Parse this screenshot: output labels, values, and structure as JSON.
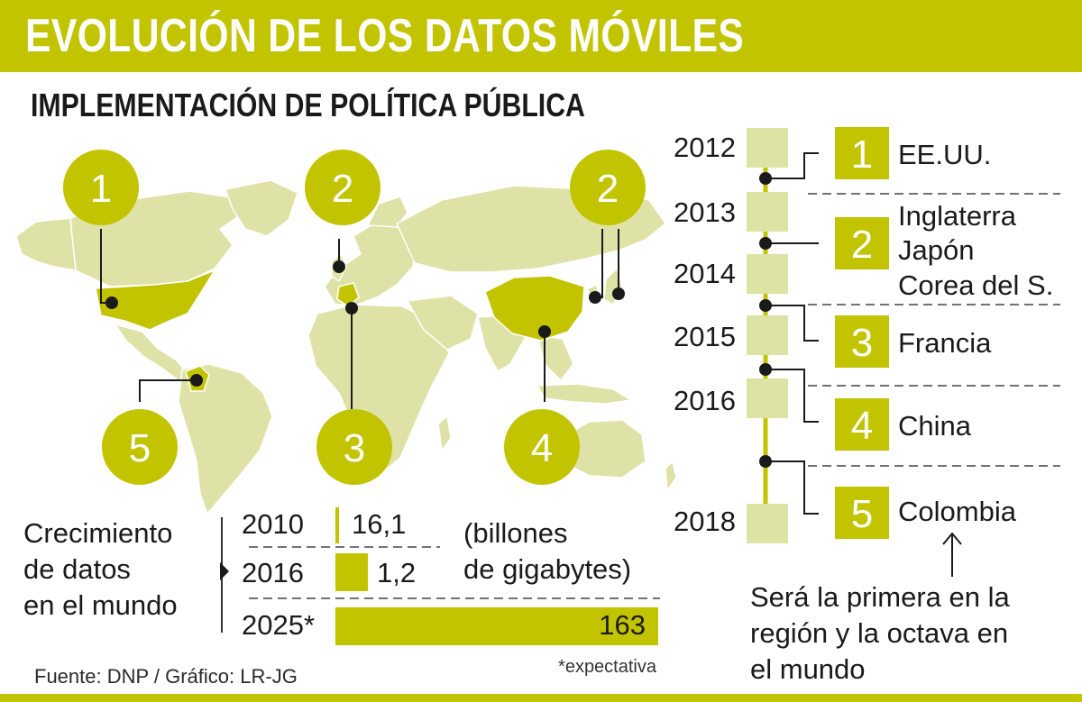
{
  "header": {
    "title": "EVOLUCIÓN DE LOS DATOS MÓVILES"
  },
  "subtitle": "IMPLEMENTACIÓN DE POLÍTICA PÚBLICA",
  "colors": {
    "accent": "#c2c400",
    "map": "#dfe2a6",
    "dark": "#1a1a1a",
    "timeline_box": "#dde3a4"
  },
  "map": {
    "markers": [
      {
        "number": "1",
        "country": "EE.UU."
      },
      {
        "number": "2",
        "country": "Inglaterra"
      },
      {
        "number": "2",
        "country": "Japón / Corea del S."
      },
      {
        "number": "3",
        "country": "Francia"
      },
      {
        "number": "4",
        "country": "China"
      },
      {
        "number": "5",
        "country": "Colombia"
      }
    ]
  },
  "chart_data": {
    "type": "bar",
    "title": "Crecimiento de datos en el mundo",
    "unit_note": "(billones de gigabytes)",
    "categories": [
      "2010",
      "2016",
      "2025*"
    ],
    "value_labels": [
      "16,1",
      "1,2",
      "163"
    ],
    "footnote": "*expectativa"
  },
  "timeline": {
    "years": [
      "2012",
      "2013",
      "2014",
      "2015",
      "2016",
      "2018"
    ],
    "entries": [
      {
        "number": "1",
        "lines": [
          "EE.UU."
        ]
      },
      {
        "number": "2",
        "lines": [
          "Inglaterra",
          "Japón",
          "Corea del S."
        ]
      },
      {
        "number": "3",
        "lines": [
          "Francia"
        ]
      },
      {
        "number": "4",
        "lines": [
          "China"
        ]
      },
      {
        "number": "5",
        "lines": [
          "Colombia"
        ]
      }
    ],
    "note": [
      "Será la primera en la",
      "región y la octava en",
      "el mundo"
    ]
  },
  "source": "Fuente: DNP / Gráfico: LR-JG"
}
